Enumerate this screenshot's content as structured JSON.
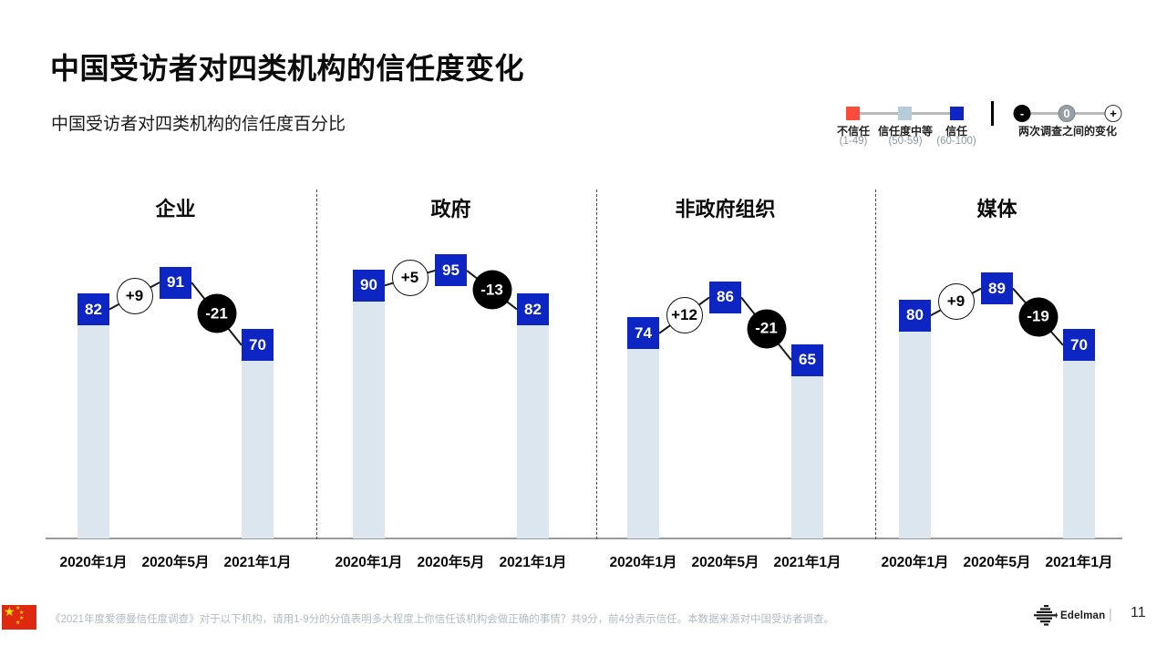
{
  "page": {
    "title": "中国受访者对四类机构的信任度变化",
    "subtitle": "中国受访者对四类机构的信任度百分比",
    "page_number": "11",
    "brand_name": "Edelman",
    "footnote": "《2021年度爱德曼信任度调查》对于以下机构，请用1-9分的分值表明多大程度上你信任该机构会做正确的事情？共9分，前4分表示信任。本数据来源对中国受访者调查。"
  },
  "legend": {
    "scale": [
      {
        "label": "不信任",
        "range": "(1-49)",
        "color": "#fa4b3c"
      },
      {
        "label": "信任度中等",
        "range": "(50-59)",
        "color": "#b7ccd9"
      },
      {
        "label": "信任",
        "range": "(60-100)",
        "color": "#0d25c3"
      }
    ],
    "change": {
      "label": "两次调查之间的变化",
      "minus_symbol": "-",
      "zero_symbol": "0",
      "plus_symbol": "+"
    }
  },
  "chart_data": {
    "type": "bar",
    "categories": [
      "2020年1月",
      "2020年5月",
      "2021年1月"
    ],
    "groups": [
      {
        "name": "企业",
        "values": [
          82,
          91,
          70
        ],
        "changes": [
          "+9",
          "-21"
        ]
      },
      {
        "name": "政府",
        "values": [
          90,
          95,
          82
        ],
        "changes": [
          "+5",
          "-13"
        ]
      },
      {
        "name": "非政府组织",
        "values": [
          74,
          86,
          65
        ],
        "changes": [
          "+12",
          "-21"
        ]
      },
      {
        "name": "媒体",
        "values": [
          80,
          89,
          70
        ],
        "changes": [
          "+9",
          "-19"
        ]
      }
    ],
    "ylim": [
      0,
      100
    ],
    "legend_position": "top-right",
    "colors": {
      "value_box": "#0d25c3",
      "bar_fill": "#dce6ee",
      "positive_circle_bg": "#ffffff",
      "negative_circle_bg": "#000000"
    }
  }
}
